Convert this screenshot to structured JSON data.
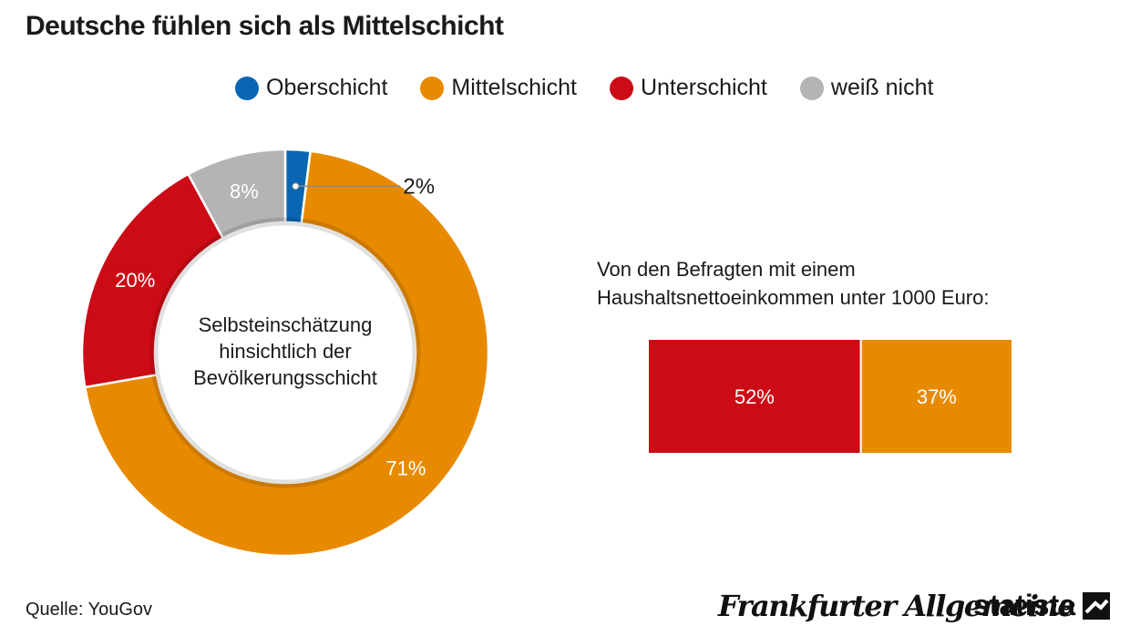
{
  "header": {
    "title": "Deutsche fühlen sich als Mittelschicht"
  },
  "legend": [
    {
      "label": "Oberschicht",
      "color": "#0866b3"
    },
    {
      "label": "Mittelschicht",
      "color": "#e88a00"
    },
    {
      "label": "Unterschicht",
      "color": "#cc0b16"
    },
    {
      "label": "weiß nicht",
      "color": "#b4b4b4"
    }
  ],
  "chart_data": [
    {
      "type": "pie",
      "style": "donut",
      "center_label": [
        "Selbsteinschätzung",
        "hinsichtlich der",
        "Bevölkerungsschicht"
      ],
      "slices": [
        {
          "name": "Oberschicht",
          "value": 2,
          "label": "2%",
          "color": "#0866b3"
        },
        {
          "name": "Mittelschicht",
          "value": 71,
          "label": "71%",
          "color": "#e88a00"
        },
        {
          "name": "Unterschicht",
          "value": 20,
          "label": "20%",
          "color": "#cc0b16"
        },
        {
          "name": "weiß nicht",
          "value": 8,
          "label": "8%",
          "color": "#b4b4b4"
        }
      ]
    },
    {
      "type": "bar",
      "orientation": "horizontal-stacked",
      "caption": "Von den Befragten mit einem Haushaltsnettoeinkommen unter 1000 Euro:",
      "segments": [
        {
          "name": "Unterschicht",
          "value": 52,
          "label": "52%",
          "color": "#cc0b16"
        },
        {
          "name": "Mittelschicht",
          "value": 37,
          "label": "37%",
          "color": "#e88a00"
        }
      ]
    }
  ],
  "footer": {
    "source": "Quelle: YouGov",
    "brand_faz": "Frankfurter Allgemeine",
    "brand_statista": "statista"
  }
}
